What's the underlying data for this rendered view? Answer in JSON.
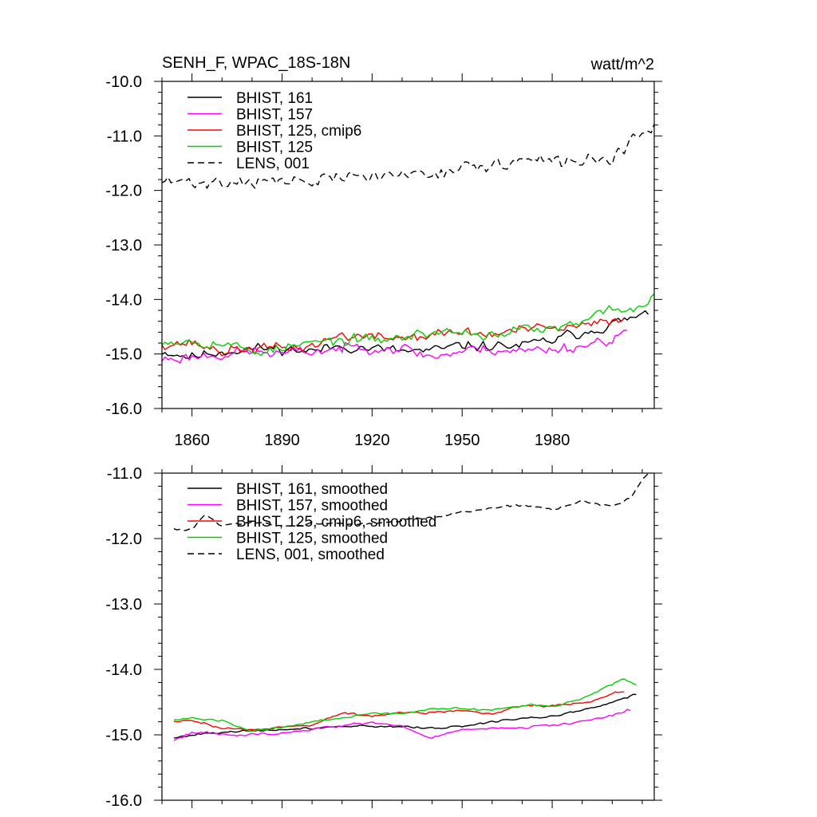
{
  "figure": {
    "title": "SENH_F, WPAC_18S-18N",
    "units": "watt/m^2"
  },
  "chart_data": [
    {
      "type": "line",
      "panel": "top",
      "title": "SENH_F, WPAC_18S-18N",
      "xlabel": "",
      "ylabel": "",
      "units": "watt/m^2",
      "xlim": [
        1850,
        2014
      ],
      "ylim": [
        -16.0,
        -10.0
      ],
      "xticks": [
        1860,
        1890,
        1920,
        1950,
        1980
      ],
      "xtick_labels": [
        "1860",
        "1890",
        "1920",
        "1950",
        "1980"
      ],
      "yticks": [
        -16.0,
        -15.0,
        -14.0,
        -13.0,
        -12.0,
        -11.0,
        -10.0
      ],
      "ytick_labels": [
        "-16.0",
        "-15.0",
        "-14.0",
        "-13.0",
        "-12.0",
        "-11.0",
        "-10.0"
      ],
      "grid": false,
      "legend_position": "top-left",
      "series": [
        {
          "name": "BHIST, 161",
          "color": "#000000",
          "dash": "solid",
          "knots": [
            [
              1850,
              -14.95
            ],
            [
              1860,
              -15.05
            ],
            [
              1870,
              -14.95
            ],
            [
              1880,
              -14.9
            ],
            [
              1890,
              -14.9
            ],
            [
              1900,
              -14.95
            ],
            [
              1910,
              -14.85
            ],
            [
              1920,
              -14.9
            ],
            [
              1930,
              -14.95
            ],
            [
              1940,
              -14.95
            ],
            [
              1950,
              -14.85
            ],
            [
              1960,
              -14.85
            ],
            [
              1970,
              -14.85
            ],
            [
              1980,
              -14.75
            ],
            [
              1990,
              -14.6
            ],
            [
              2000,
              -14.45
            ],
            [
              2010,
              -14.3
            ],
            [
              2012,
              -14.3
            ]
          ],
          "noise": 0.14,
          "seed": 11
        },
        {
          "name": "BHIST, 157",
          "color": "#ff00ff",
          "dash": "solid",
          "knots": [
            [
              1850,
              -15.1
            ],
            [
              1860,
              -15.05
            ],
            [
              1870,
              -15.0
            ],
            [
              1880,
              -14.95
            ],
            [
              1890,
              -15.0
            ],
            [
              1900,
              -14.95
            ],
            [
              1910,
              -14.9
            ],
            [
              1920,
              -14.85
            ],
            [
              1930,
              -14.9
            ],
            [
              1940,
              -15.05
            ],
            [
              1950,
              -14.95
            ],
            [
              1960,
              -14.9
            ],
            [
              1970,
              -14.95
            ],
            [
              1980,
              -14.9
            ],
            [
              1990,
              -14.85
            ],
            [
              2000,
              -14.7
            ],
            [
              2005,
              -14.6
            ]
          ],
          "noise": 0.15,
          "seed": 23
        },
        {
          "name": "BHIST, 125, cmip6",
          "color": "#ff0000",
          "dash": "solid",
          "knots": [
            [
              1850,
              -14.8
            ],
            [
              1860,
              -14.8
            ],
            [
              1870,
              -14.95
            ],
            [
              1880,
              -14.9
            ],
            [
              1890,
              -14.9
            ],
            [
              1900,
              -14.85
            ],
            [
              1910,
              -14.65
            ],
            [
              1920,
              -14.7
            ],
            [
              1930,
              -14.7
            ],
            [
              1940,
              -14.65
            ],
            [
              1950,
              -14.6
            ],
            [
              1960,
              -14.65
            ],
            [
              1970,
              -14.55
            ],
            [
              1980,
              -14.55
            ],
            [
              1990,
              -14.5
            ],
            [
              2000,
              -14.4
            ],
            [
              2004,
              -14.3
            ]
          ],
          "noise": 0.14,
          "seed": 37
        },
        {
          "name": "BHIST, 125",
          "color": "#00d000",
          "dash": "solid",
          "knots": [
            [
              1850,
              -14.75
            ],
            [
              1860,
              -14.75
            ],
            [
              1870,
              -14.8
            ],
            [
              1880,
              -14.95
            ],
            [
              1890,
              -14.9
            ],
            [
              1900,
              -14.8
            ],
            [
              1910,
              -14.75
            ],
            [
              1920,
              -14.75
            ],
            [
              1930,
              -14.7
            ],
            [
              1940,
              -14.6
            ],
            [
              1950,
              -14.6
            ],
            [
              1960,
              -14.65
            ],
            [
              1970,
              -14.55
            ],
            [
              1980,
              -14.55
            ],
            [
              1990,
              -14.45
            ],
            [
              2000,
              -14.15
            ],
            [
              2010,
              -14.2
            ],
            [
              2014,
              -13.85
            ]
          ],
          "noise": 0.14,
          "seed": 53
        },
        {
          "name": "LENS, 001",
          "color": "#000000",
          "dash": "dashed",
          "knots": [
            [
              1850,
              -11.85
            ],
            [
              1860,
              -11.85
            ],
            [
              1870,
              -11.85
            ],
            [
              1880,
              -11.8
            ],
            [
              1890,
              -11.85
            ],
            [
              1900,
              -11.85
            ],
            [
              1910,
              -11.75
            ],
            [
              1920,
              -11.75
            ],
            [
              1930,
              -11.7
            ],
            [
              1940,
              -11.65
            ],
            [
              1950,
              -11.6
            ],
            [
              1960,
              -11.55
            ],
            [
              1970,
              -11.45
            ],
            [
              1980,
              -11.5
            ],
            [
              1990,
              -11.45
            ],
            [
              2000,
              -11.4
            ],
            [
              2007,
              -11.1
            ],
            [
              2014,
              -10.9
            ]
          ],
          "noise": 0.18,
          "seed": 71
        }
      ]
    },
    {
      "type": "line",
      "panel": "bottom",
      "title": "",
      "xlabel": "",
      "ylabel": "",
      "xlim": [
        1850,
        2014
      ],
      "ylim": [
        -16.0,
        -11.0
      ],
      "xticks": [
        1860,
        1890,
        1920,
        1950,
        1980
      ],
      "xtick_labels": [],
      "yticks": [
        -16.0,
        -15.0,
        -14.0,
        -13.0,
        -12.0,
        -11.0
      ],
      "ytick_labels": [
        "-16.0",
        "-15.0",
        "-14.0",
        "-13.0",
        "-12.0",
        "-11.0"
      ],
      "grid": false,
      "legend_position": "top-left",
      "series": [
        {
          "name": "BHIST, 161, smoothed",
          "color": "#000000",
          "dash": "solid",
          "knots": [
            [
              1854,
              -15.05
            ],
            [
              1860,
              -15.0
            ],
            [
              1870,
              -14.95
            ],
            [
              1880,
              -14.95
            ],
            [
              1890,
              -14.92
            ],
            [
              1900,
              -14.9
            ],
            [
              1910,
              -14.87
            ],
            [
              1920,
              -14.87
            ],
            [
              1930,
              -14.87
            ],
            [
              1940,
              -14.9
            ],
            [
              1950,
              -14.87
            ],
            [
              1960,
              -14.8
            ],
            [
              1970,
              -14.75
            ],
            [
              1980,
              -14.72
            ],
            [
              1990,
              -14.62
            ],
            [
              2000,
              -14.5
            ],
            [
              2008,
              -14.38
            ]
          ],
          "noise": 0.025,
          "seed": 101
        },
        {
          "name": "BHIST, 157, smoothed",
          "color": "#ff00ff",
          "dash": "solid",
          "knots": [
            [
              1854,
              -15.08
            ],
            [
              1860,
              -14.95
            ],
            [
              1870,
              -15.0
            ],
            [
              1880,
              -15.0
            ],
            [
              1890,
              -14.97
            ],
            [
              1900,
              -14.92
            ],
            [
              1910,
              -14.85
            ],
            [
              1920,
              -14.82
            ],
            [
              1930,
              -14.87
            ],
            [
              1940,
              -15.05
            ],
            [
              1950,
              -14.92
            ],
            [
              1960,
              -14.9
            ],
            [
              1970,
              -14.9
            ],
            [
              1980,
              -14.85
            ],
            [
              1990,
              -14.8
            ],
            [
              2000,
              -14.7
            ],
            [
              2006,
              -14.62
            ]
          ],
          "noise": 0.03,
          "seed": 113
        },
        {
          "name": "BHIST, 125, cmip6, smoothed",
          "color": "#ff0000",
          "dash": "solid",
          "knots": [
            [
              1854,
              -14.8
            ],
            [
              1860,
              -14.77
            ],
            [
              1870,
              -14.9
            ],
            [
              1880,
              -14.92
            ],
            [
              1890,
              -14.88
            ],
            [
              1900,
              -14.85
            ],
            [
              1910,
              -14.67
            ],
            [
              1920,
              -14.72
            ],
            [
              1930,
              -14.65
            ],
            [
              1940,
              -14.67
            ],
            [
              1950,
              -14.63
            ],
            [
              1960,
              -14.68
            ],
            [
              1970,
              -14.55
            ],
            [
              1980,
              -14.55
            ],
            [
              1990,
              -14.52
            ],
            [
              2000,
              -14.38
            ],
            [
              2004,
              -14.33
            ]
          ],
          "noise": 0.025,
          "seed": 127
        },
        {
          "name": "BHIST, 125, smoothed",
          "color": "#00d000",
          "dash": "solid",
          "knots": [
            [
              1854,
              -14.78
            ],
            [
              1860,
              -14.75
            ],
            [
              1870,
              -14.78
            ],
            [
              1880,
              -14.95
            ],
            [
              1890,
              -14.88
            ],
            [
              1900,
              -14.8
            ],
            [
              1910,
              -14.75
            ],
            [
              1920,
              -14.67
            ],
            [
              1930,
              -14.67
            ],
            [
              1940,
              -14.6
            ],
            [
              1950,
              -14.6
            ],
            [
              1960,
              -14.62
            ],
            [
              1970,
              -14.55
            ],
            [
              1980,
              -14.57
            ],
            [
              1990,
              -14.45
            ],
            [
              2000,
              -14.22
            ],
            [
              2004,
              -14.13
            ],
            [
              2008,
              -14.22
            ]
          ],
          "noise": 0.025,
          "seed": 139
        },
        {
          "name": "LENS, 001, smoothed",
          "color": "#000000",
          "dash": "dashed",
          "knots": [
            [
              1854,
              -11.85
            ],
            [
              1860,
              -11.87
            ],
            [
              1864,
              -11.65
            ],
            [
              1870,
              -11.8
            ],
            [
              1880,
              -11.75
            ],
            [
              1890,
              -11.82
            ],
            [
              1900,
              -11.78
            ],
            [
              1910,
              -11.78
            ],
            [
              1920,
              -11.78
            ],
            [
              1930,
              -11.72
            ],
            [
              1940,
              -11.68
            ],
            [
              1950,
              -11.6
            ],
            [
              1960,
              -11.55
            ],
            [
              1970,
              -11.48
            ],
            [
              1980,
              -11.55
            ],
            [
              1990,
              -11.42
            ],
            [
              2000,
              -11.5
            ],
            [
              2006,
              -11.4
            ],
            [
              2010,
              -11.1
            ],
            [
              2012,
              -11.0
            ]
          ],
          "noise": 0.03,
          "seed": 151
        }
      ]
    }
  ]
}
